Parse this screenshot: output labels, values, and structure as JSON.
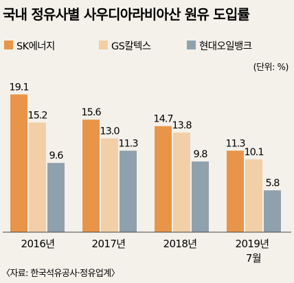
{
  "chart_data": {
    "type": "bar",
    "title": "국내 정유사별 사우디아라비아산 원유 도입률",
    "unit": "(단위: %)",
    "source": "〈자료: 한국석유공사·정유업계〉",
    "categories": [
      {
        "line1": "2016년",
        "line2": ""
      },
      {
        "line1": "2017년",
        "line2": ""
      },
      {
        "line1": "2018년",
        "line2": ""
      },
      {
        "line1": "2019년",
        "line2": "7월"
      }
    ],
    "series": [
      {
        "name": "SK에너지",
        "color": "#e8954a",
        "values": [
          19.1,
          15.6,
          14.7,
          11.3
        ]
      },
      {
        "name": "GS칼텍스",
        "color": "#f2cfa6",
        "values": [
          15.2,
          13.0,
          13.8,
          10.1
        ]
      },
      {
        "name": "현대오일뱅크",
        "color": "#8fa1ad",
        "values": [
          9.6,
          11.3,
          9.8,
          5.8
        ]
      }
    ],
    "ylim": [
      0,
      20
    ],
    "legend": "top-left"
  }
}
